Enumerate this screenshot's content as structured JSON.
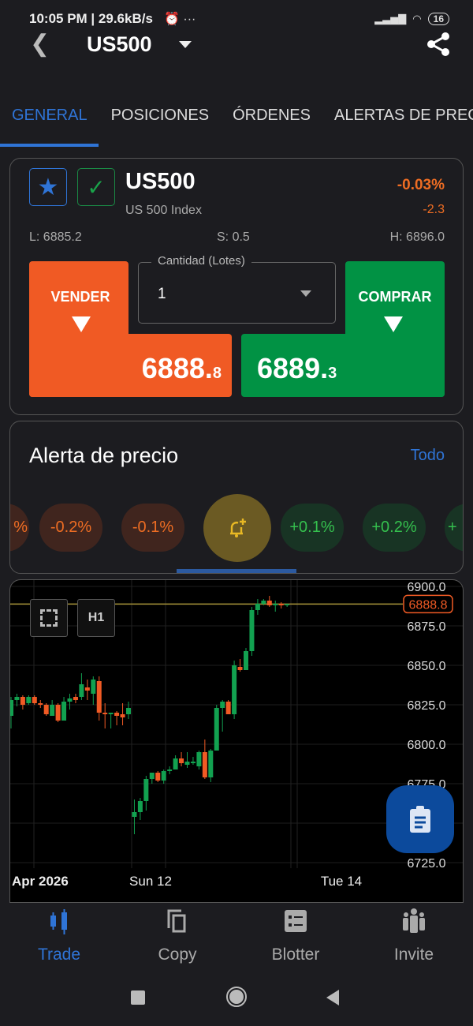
{
  "status": {
    "time": "10:05 PM | 29.6kB/s",
    "battery": "16"
  },
  "header": {
    "title": "US500"
  },
  "tabs": [
    "GENERAL",
    "POSICIONES",
    "ÓRDENES",
    "ALERTAS DE PRECIO"
  ],
  "instrument": {
    "symbol": "US500",
    "name": "US 500 Index",
    "change_pct": "-0.03%",
    "change": "-2.3",
    "low": "L: 6885.2",
    "spread": "S: 0.5",
    "high": "H: 6896.0"
  },
  "trade": {
    "sell_label": "VENDER",
    "buy_label": "COMPRAR",
    "quantity_label": "Cantidad (Lotes)",
    "quantity": "1",
    "sell_price_main": "6888.",
    "sell_price_frac": "8",
    "buy_price_main": "6889.",
    "buy_price_frac": "3"
  },
  "alerts": {
    "title": "Alerta de precio",
    "all_link": "Todo",
    "chips": [
      "%",
      "-0.2%",
      "-0.1%",
      "+0.1%",
      "+0.2%",
      "+"
    ]
  },
  "chart_controls": {
    "timeframe": "H1"
  },
  "chart_data": {
    "type": "candlestick",
    "y_ticks": [
      "6900.0",
      "6875.0",
      "6850.0",
      "6825.0",
      "6800.0",
      "6775.0",
      "6725.0"
    ],
    "ylim": [
      6725,
      6900
    ],
    "x_labels": [
      "Apr 2026",
      "Sun 12",
      "Tue 14"
    ],
    "current_price": "6888.8",
    "candles": [
      [
        6818,
        6830,
        6810,
        6828
      ],
      [
        6828,
        6832,
        6824,
        6830
      ],
      [
        6830,
        6831,
        6822,
        6825
      ],
      [
        6826,
        6831,
        6825,
        6830
      ],
      [
        6830,
        6831,
        6825,
        6826
      ],
      [
        6826,
        6828,
        6823,
        6825
      ],
      [
        6825,
        6826,
        6818,
        6819
      ],
      [
        6818,
        6828,
        6818,
        6825
      ],
      [
        6825,
        6826,
        6814,
        6815
      ],
      [
        6815,
        6830,
        6815,
        6827
      ],
      [
        6827,
        6832,
        6822,
        6829
      ],
      [
        6830,
        6832,
        6826,
        6828
      ],
      [
        6830,
        6845,
        6828,
        6838
      ],
      [
        6836,
        6841,
        6828,
        6834
      ],
      [
        6832,
        6843,
        6825,
        6841
      ],
      [
        6840,
        6843,
        6815,
        6820
      ],
      [
        6820,
        6826,
        6810,
        6819
      ],
      [
        6819,
        6820,
        6810,
        6820
      ],
      [
        6820,
        6821,
        6812,
        6818
      ],
      [
        6819,
        6826,
        6812,
        6817
      ],
      [
        6819,
        6827,
        6816,
        6823
      ],
      [
        6754,
        6765,
        6743,
        6757
      ],
      [
        6757,
        6766,
        6752,
        6764
      ],
      [
        6764,
        6780,
        6758,
        6778
      ],
      [
        6778,
        6782,
        6775,
        6782
      ],
      [
        6782,
        6783,
        6776,
        6777
      ],
      [
        6777,
        6784,
        6775,
        6783
      ],
      [
        6783,
        6786,
        6781,
        6784
      ],
      [
        6784,
        6793,
        6784,
        6791
      ],
      [
        6791,
        6795,
        6786,
        6788
      ],
      [
        6787,
        6795,
        6785,
        6789
      ],
      [
        6788,
        6792,
        6787,
        6789
      ],
      [
        6786,
        6796,
        6784,
        6795
      ],
      [
        6795,
        6803,
        6778,
        6779
      ],
      [
        6779,
        6797,
        6776,
        6796
      ],
      [
        6796,
        6825,
        6796,
        6823
      ],
      [
        6823,
        6828,
        6808,
        6827
      ],
      [
        6827,
        6828,
        6819,
        6819
      ],
      [
        6819,
        6853,
        6816,
        6850
      ],
      [
        6849,
        6854,
        6846,
        6847
      ],
      [
        6847,
        6861,
        6847,
        6859
      ],
      [
        6859,
        6887,
        6856,
        6885
      ],
      [
        6885,
        6892,
        6882,
        6889
      ],
      [
        6889,
        6892,
        6888,
        6891
      ],
      [
        6891,
        6894,
        6887,
        6888
      ],
      [
        6888,
        6891,
        6884,
        6889
      ],
      [
        6889,
        6890,
        6886,
        6888
      ],
      [
        6888,
        6889,
        6887,
        6888.8
      ]
    ]
  },
  "bottom_nav": [
    {
      "label": "Trade",
      "active": true
    },
    {
      "label": "Copy"
    },
    {
      "label": "Blotter"
    },
    {
      "label": "Invite"
    }
  ],
  "colors": {
    "accent": "#2f74d6",
    "sell": "#f05a24",
    "buy": "#019244",
    "up": "#12a150",
    "down": "#f05a24"
  }
}
